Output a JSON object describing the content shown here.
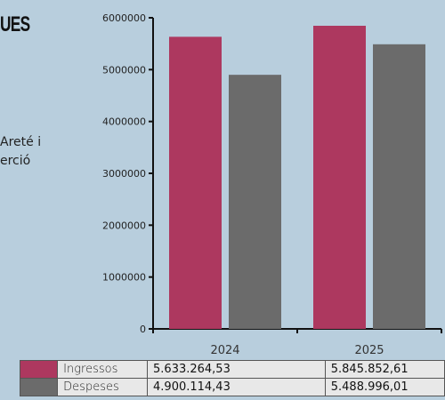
{
  "left": {
    "title_fragment": "UES",
    "text_fragment": "Areté i\nerció"
  },
  "colors": {
    "ingressos": "#ad385f",
    "despeses": "#6b6b6b"
  },
  "chart_data": {
    "type": "bar",
    "categories": [
      "2024",
      "2025"
    ],
    "series": [
      {
        "name": "Ingressos",
        "values": [
          5633264.53,
          5845852.61
        ]
      },
      {
        "name": "Despeses",
        "values": [
          4900114.43,
          5488996.01
        ]
      }
    ],
    "ylim": [
      0,
      6000000
    ],
    "yticks": [
      "0",
      "1000000",
      "2000000",
      "3000000",
      "4000000",
      "5000000",
      "6000000"
    ],
    "grid": false,
    "table": [
      {
        "name": "Ingressos",
        "values": [
          "5.633.264,53",
          "5.845.852,61"
        ]
      },
      {
        "name": "Despeses",
        "values": [
          "4.900.114,43",
          "5.488.996,01"
        ]
      }
    ]
  }
}
